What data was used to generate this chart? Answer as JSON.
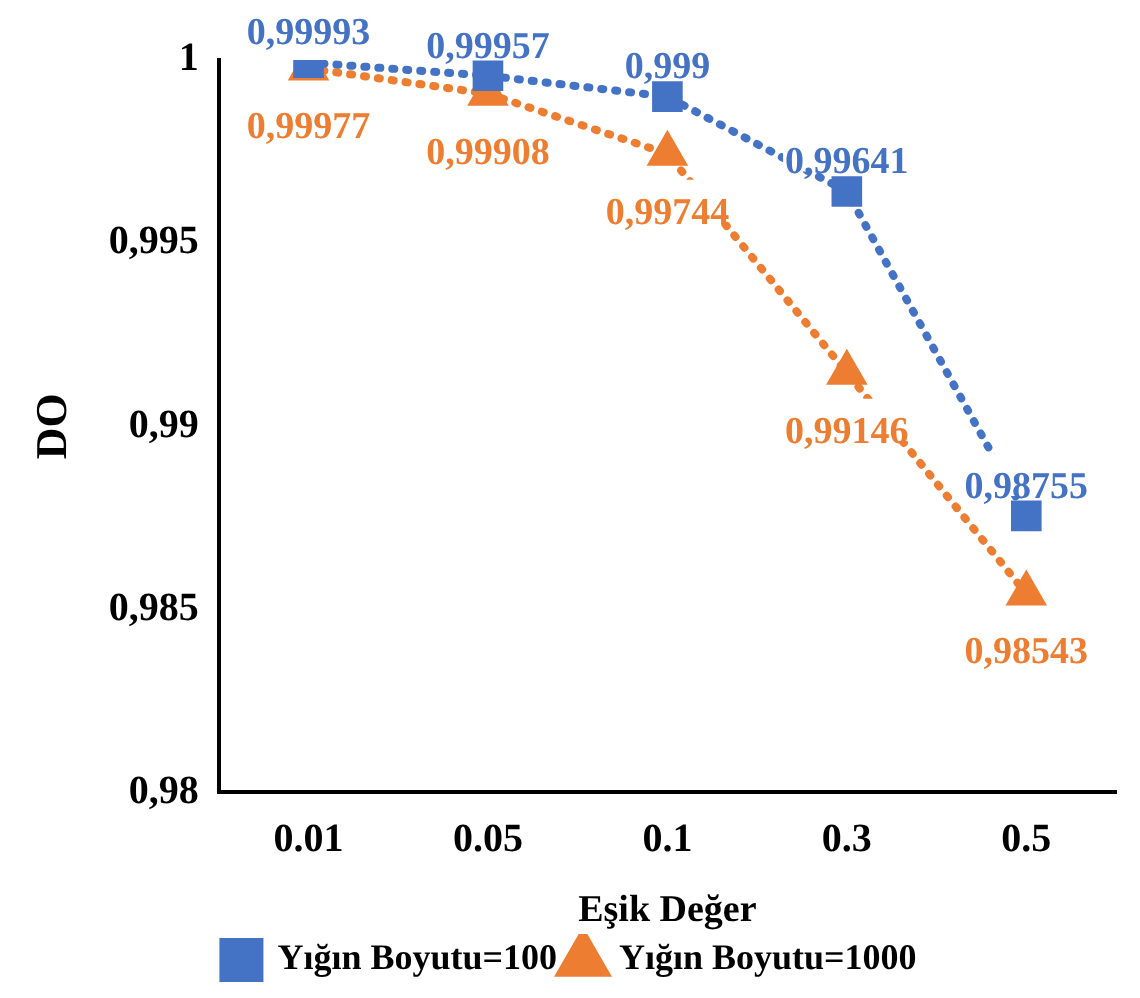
{
  "chart_data": {
    "type": "line",
    "xlabel": "Eşik Değer",
    "ylabel": "DO",
    "categories": [
      "0.01",
      "0.05",
      "0.1",
      "0.3",
      "0.5"
    ],
    "ylim": [
      0.98,
      1
    ],
    "yticks": [
      {
        "value": 0.98,
        "label": "0,98"
      },
      {
        "value": 0.985,
        "label": "0,985"
      },
      {
        "value": 0.99,
        "label": "0,99"
      },
      {
        "value": 0.995,
        "label": "0,995"
      },
      {
        "value": 1,
        "label": "1"
      }
    ],
    "grid": false,
    "legend": "bottom",
    "line_style": "dotted",
    "series": [
      {
        "name": "Yığın Boyutu=100",
        "color": "#4472c4",
        "marker": "square",
        "values": [
          0.99993,
          0.99957,
          0.999,
          0.99641,
          0.98755
        ],
        "value_labels": [
          "0,99993",
          "0,99957",
          "0,999",
          "0,99641",
          "0,98755"
        ]
      },
      {
        "name": "Yığın Boyutu=1000",
        "color": "#ed7d31",
        "marker": "triangle",
        "values": [
          0.99977,
          0.99908,
          0.99744,
          0.99146,
          0.98543
        ],
        "value_labels": [
          "0,99977",
          "0,99908",
          "0,99744",
          "0,99146",
          "0,98543"
        ]
      }
    ]
  }
}
